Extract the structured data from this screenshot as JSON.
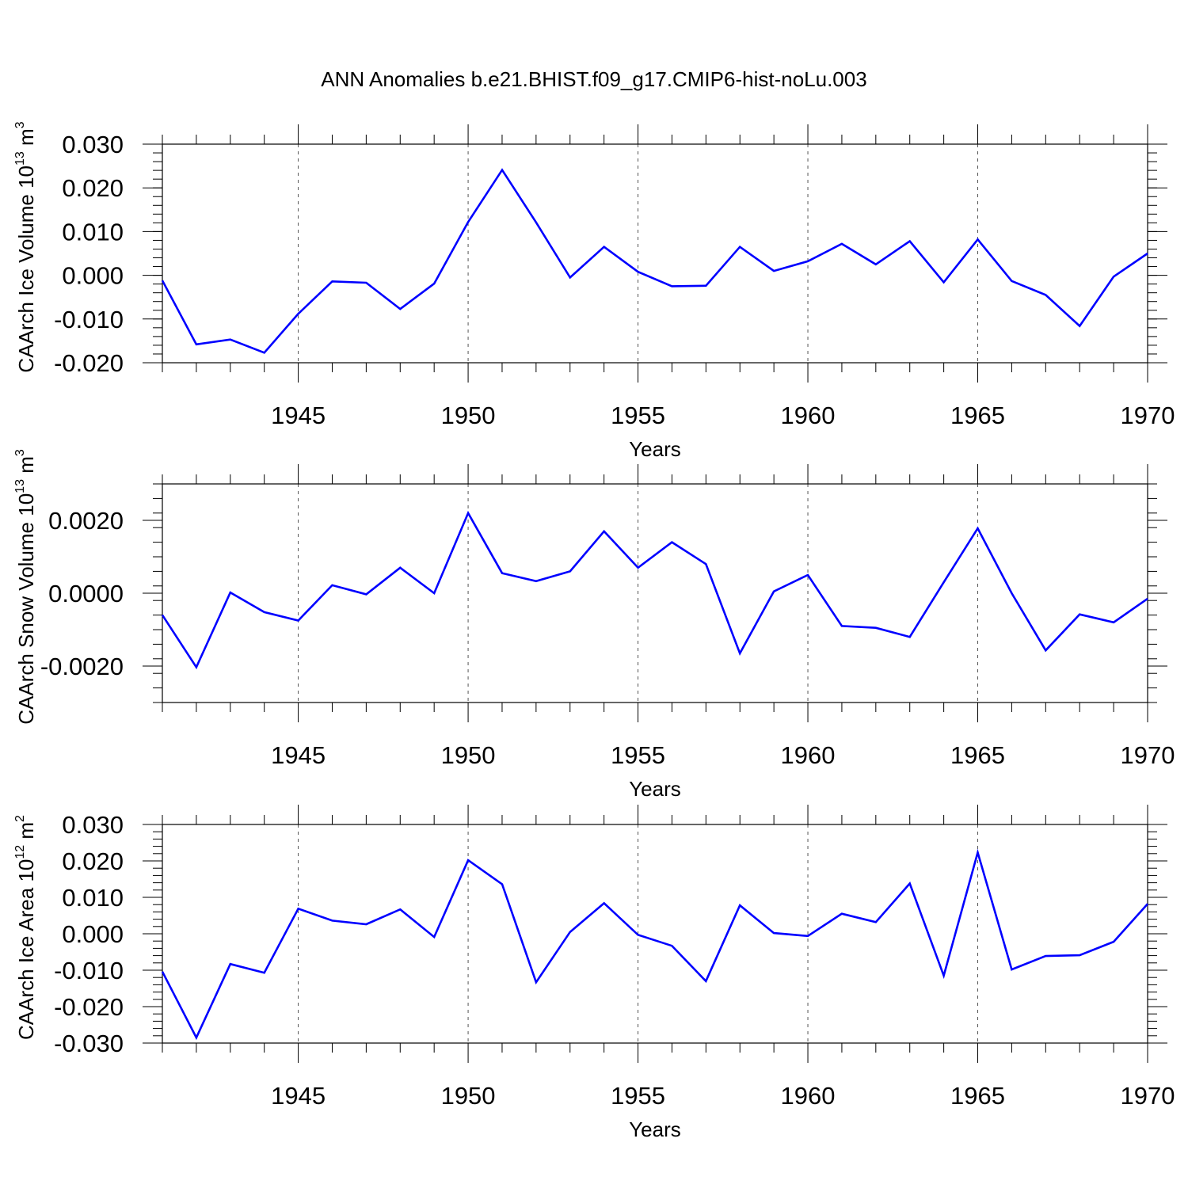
{
  "title": "ANN Anomalies b.e21.BHIST.f09_g17.CMIP6-hist-noLu.003",
  "colors": {
    "series": "#0000ff",
    "axis": "#000000",
    "grid": "#555555"
  },
  "chart_data": [
    {
      "type": "line",
      "ylabel": "CAArch Ice Volume 10",
      "ylabel_sup": "13",
      "ylabel_unit": " m",
      "ylabel_unit_sup": "3",
      "xlabel": "Years",
      "xlim": [
        1941,
        1970
      ],
      "ylim": [
        -0.02,
        0.03
      ],
      "grid_x": true,
      "xticks": [
        1945,
        1950,
        1955,
        1960,
        1965,
        1970
      ],
      "xtick_labels": [
        "1945",
        "1950",
        "1955",
        "1960",
        "1965",
        "1970"
      ],
      "yticks": [
        -0.02,
        -0.01,
        0.0,
        0.01,
        0.02,
        0.03
      ],
      "ytick_labels": [
        "-0.020",
        "-0.010",
        "0.000",
        "0.010",
        "0.020",
        "0.030"
      ],
      "x": [
        1941,
        1942,
        1943,
        1944,
        1945,
        1946,
        1947,
        1948,
        1949,
        1950,
        1951,
        1952,
        1953,
        1954,
        1955,
        1956,
        1957,
        1958,
        1959,
        1960,
        1961,
        1962,
        1963,
        1964,
        1965,
        1966,
        1967,
        1968,
        1969,
        1970
      ],
      "y": [
        -0.0012,
        -0.0158,
        -0.0147,
        -0.0177,
        -0.0088,
        -0.0014,
        -0.0017,
        -0.0077,
        -0.0019,
        0.0122,
        0.0241,
        0.0121,
        -0.0005,
        0.0065,
        0.0008,
        -0.0025,
        -0.0024,
        0.0065,
        0.001,
        0.0032,
        0.0072,
        0.0025,
        0.0078,
        -0.0016,
        0.0082,
        -0.0013,
        -0.0045,
        -0.0116,
        -0.0003,
        0.005
      ]
    },
    {
      "type": "line",
      "ylabel": "CAArch Snow Volume 10",
      "ylabel_sup": "13",
      "ylabel_unit": " m",
      "ylabel_unit_sup": "3",
      "xlabel": "Years",
      "xlim": [
        1941,
        1970
      ],
      "ylim": [
        -0.003,
        0.003
      ],
      "grid_x": true,
      "xticks": [
        1945,
        1950,
        1955,
        1960,
        1965,
        1970
      ],
      "xtick_labels": [
        "1945",
        "1950",
        "1955",
        "1960",
        "1965",
        "1970"
      ],
      "yticks": [
        -0.002,
        0.0,
        0.002
      ],
      "ytick_labels": [
        "-0.0020",
        "0.0000",
        "0.0020"
      ],
      "x": [
        1941,
        1942,
        1943,
        1944,
        1945,
        1946,
        1947,
        1948,
        1949,
        1950,
        1951,
        1952,
        1953,
        1954,
        1955,
        1956,
        1957,
        1958,
        1959,
        1960,
        1961,
        1962,
        1963,
        1964,
        1965,
        1966,
        1967,
        1968,
        1969,
        1970
      ],
      "y": [
        -0.0006,
        -0.00203,
        2e-05,
        -0.00052,
        -0.00075,
        0.00022,
        -3e-05,
        0.0007,
        0.0,
        0.0022,
        0.00055,
        0.00033,
        0.0006,
        0.0017,
        0.0007,
        0.0014,
        0.0008,
        -0.00165,
        5e-05,
        0.0005,
        -0.0009,
        -0.00095,
        -0.0012,
        0.0003,
        0.00178,
        0.0,
        -0.00157,
        -0.00058,
        -0.0008,
        -0.00015
      ]
    },
    {
      "type": "line",
      "ylabel": "CAArch Ice Area 10",
      "ylabel_sup": "12",
      "ylabel_unit": " m",
      "ylabel_unit_sup": "2",
      "xlabel": "Years",
      "xlim": [
        1941,
        1970
      ],
      "ylim": [
        -0.03,
        0.03
      ],
      "grid_x": true,
      "xticks": [
        1945,
        1950,
        1955,
        1960,
        1965,
        1970
      ],
      "xtick_labels": [
        "1945",
        "1950",
        "1955",
        "1960",
        "1965",
        "1970"
      ],
      "yticks": [
        -0.03,
        -0.02,
        -0.01,
        0.0,
        0.01,
        0.02,
        0.03
      ],
      "ytick_labels": [
        "-0.030",
        "-0.020",
        "-0.010",
        "0.000",
        "0.010",
        "0.020",
        "0.030"
      ],
      "x": [
        1941,
        1942,
        1943,
        1944,
        1945,
        1946,
        1947,
        1948,
        1949,
        1950,
        1951,
        1952,
        1953,
        1954,
        1955,
        1956,
        1957,
        1958,
        1959,
        1960,
        1961,
        1962,
        1963,
        1964,
        1965,
        1966,
        1967,
        1968,
        1969,
        1970
      ],
      "y": [
        -0.0104,
        -0.0285,
        -0.0083,
        -0.0107,
        0.0069,
        0.0036,
        0.0026,
        0.0067,
        -0.0009,
        0.0202,
        0.0136,
        -0.0133,
        0.0005,
        0.0084,
        -0.0003,
        -0.0033,
        -0.013,
        0.0078,
        0.0002,
        -0.0006,
        0.0055,
        0.0032,
        0.0138,
        -0.0115,
        0.0223,
        -0.0098,
        -0.0061,
        -0.0059,
        -0.0022,
        0.0082
      ]
    }
  ]
}
